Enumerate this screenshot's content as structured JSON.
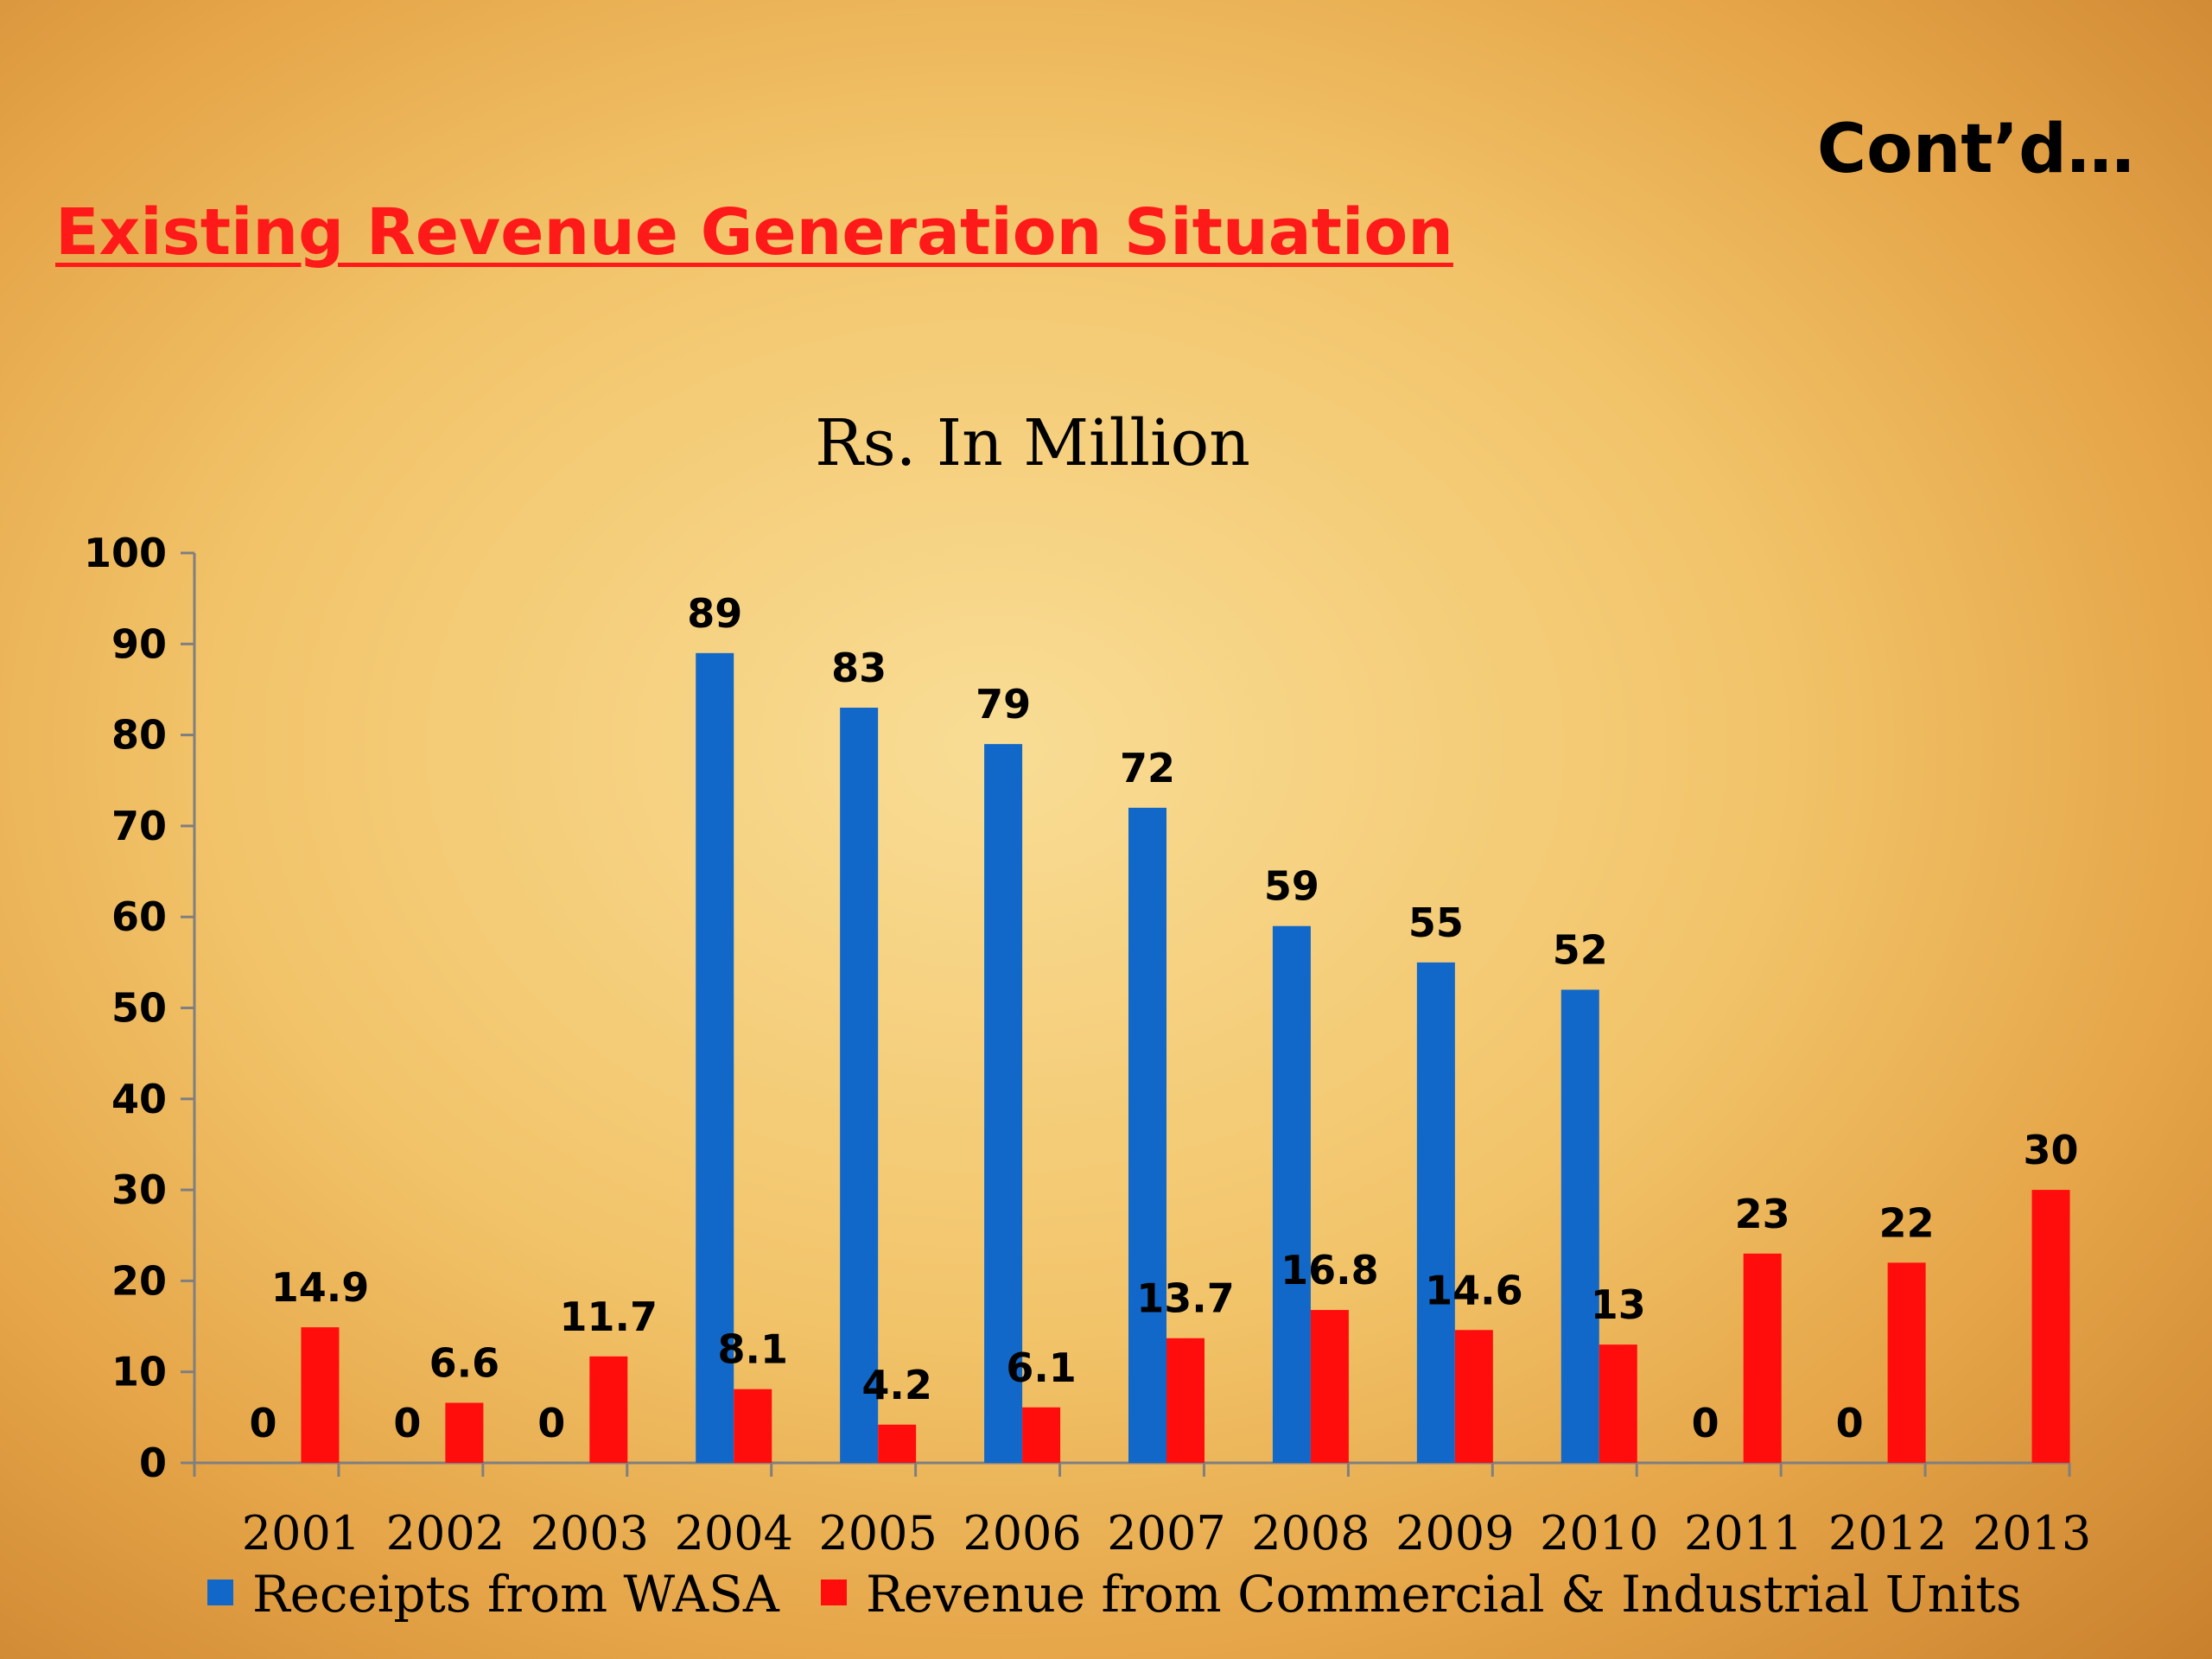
{
  "slide": {
    "title": "Existing Revenue Generation Situation",
    "corner_note": "Cont’d…"
  },
  "colors": {
    "series_1": "#1268c8",
    "series_2": "#ff0d0d",
    "title": "#ff1a1a"
  },
  "chart_data": {
    "type": "bar",
    "title": "Rs. In Million",
    "xlabel": "",
    "ylabel": "",
    "ylim": [
      0,
      100
    ],
    "yticks": [
      0,
      10,
      20,
      30,
      40,
      50,
      60,
      70,
      80,
      90,
      100
    ],
    "grid": false,
    "legend_position": "bottom",
    "categories": [
      "2001",
      "2002",
      "2003",
      "2004",
      "2005",
      "2006",
      "2007",
      "2008",
      "2009",
      "2010",
      "2011",
      "2012",
      "2013"
    ],
    "series": [
      {
        "name": "Receipts from WASA",
        "values": [
          0,
          0,
          0,
          89,
          83,
          79,
          72,
          59,
          55,
          52,
          0,
          0,
          null
        ],
        "labels": [
          "0",
          "0",
          "0",
          "89",
          "83",
          "79",
          "72",
          "59",
          "55",
          "52",
          "0",
          "0",
          ""
        ]
      },
      {
        "name": "Revenue from Commercial & Industrial Units",
        "values": [
          14.9,
          6.6,
          11.7,
          8.1,
          4.2,
          6.1,
          13.7,
          16.8,
          14.6,
          13,
          23,
          22,
          30
        ],
        "labels": [
          "14.9",
          "6.6",
          "11.7",
          "8.1",
          "4.2",
          "6.1",
          "13.7",
          "16.8",
          "14.6",
          "13",
          "23",
          "22",
          "30"
        ]
      }
    ]
  }
}
